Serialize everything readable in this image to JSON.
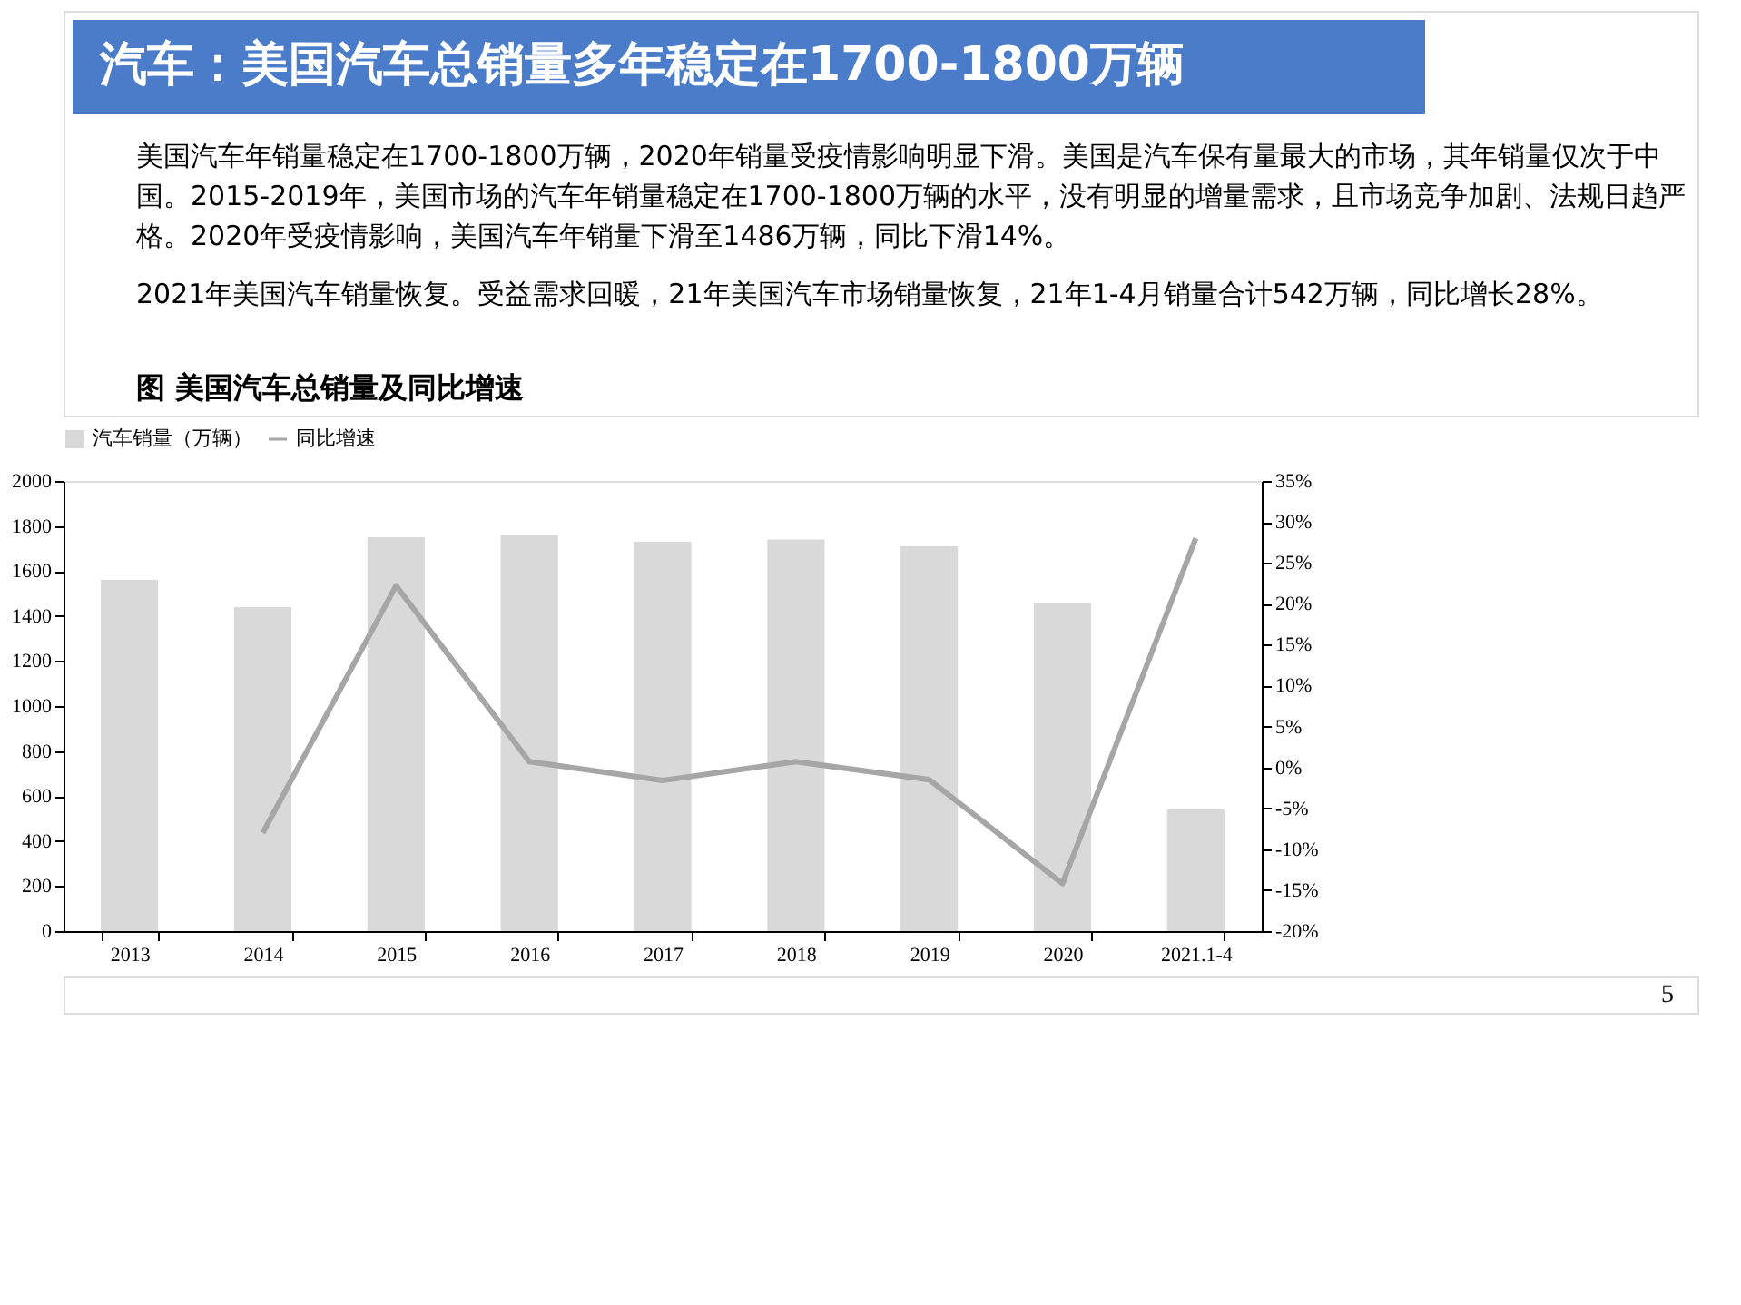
{
  "chart_data": {
    "type": "bar",
    "title": "汽车：美国汽车总销量多年稳定在1700-1800万辆",
    "subtitle": "图  美国汽车总销量及同比增速",
    "annotations": [
      "美国汽车年销量稳定在1700-1800万辆，2020年销量受疫情影响明显下滑。美国是汽车保有量最大的市场，其年销量仅次于中国。2015-2019年，美国市场的汽车年销量稳定在1700-1800万辆的水平，没有明显的增量需求，且市场竞争加剧、法规日趋严格。2020年受疫情影响，美国汽车年销量下滑至1486万辆，同比下滑14%。",
      "2021年美国汽车销量恢复。受益需求回暖，21年美国汽车市场销量恢复，21年1-4月销量合计542万辆，同比增长28%。",
      "5"
    ],
    "categories": [
      "2013",
      "2014",
      "2015",
      "2016",
      "2017",
      "2018",
      "2019",
      "2020",
      "2021.1-4"
    ],
    "series": [
      {
        "name": "汽车销量（万辆）",
        "color": "#d9d9d9",
        "values": [
          1560,
          1440,
          1750,
          1760,
          1730,
          1740,
          1710,
          1460,
          540
        ]
      },
      {
        "name": "同比增速",
        "color": "#a6a6a6",
        "type": "line",
        "axis": "y2",
        "values": [
          null,
          -8,
          22.2,
          0.7,
          -1.6,
          0.7,
          -1.5,
          -14.2,
          28
        ]
      }
    ],
    "ylim": [
      0,
      2000
    ],
    "yticks": [
      0,
      200,
      400,
      600,
      800,
      1000,
      1200,
      1400,
      1600,
      1800,
      2000
    ],
    "y2lim": [
      -20,
      35
    ],
    "y2ticks": [
      {
        "value": -20,
        "label": "-20%"
      },
      {
        "value": -15,
        "label": "-15%"
      },
      {
        "value": -10,
        "label": "-10%"
      },
      {
        "value": -5,
        "label": "-5%"
      },
      {
        "value": 0,
        "label": "0%"
      },
      {
        "value": 5,
        "label": "5%"
      },
      {
        "value": 10,
        "label": "10%"
      },
      {
        "value": 15,
        "label": "15%"
      },
      {
        "value": 20,
        "label": "20%"
      },
      {
        "value": 25,
        "label": "25%"
      },
      {
        "value": 30,
        "label": "30%"
      },
      {
        "value": 35,
        "label": "35%"
      }
    ],
    "legend": "top",
    "grid": false
  }
}
